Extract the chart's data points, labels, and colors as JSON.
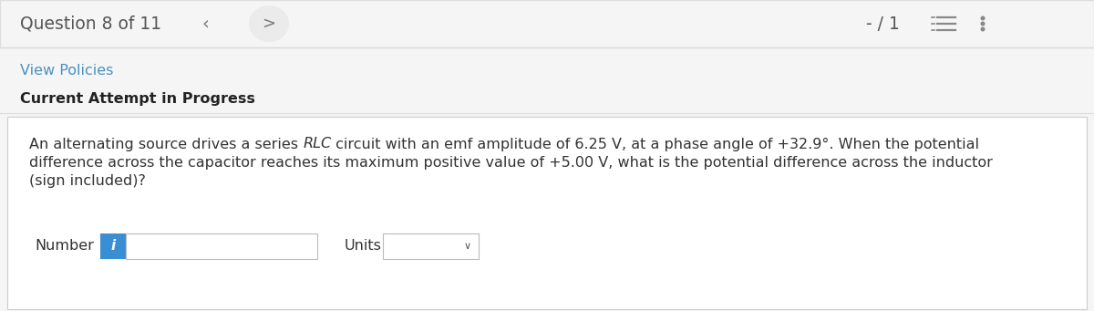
{
  "bg_color": "#f5f5f5",
  "white": "#ffffff",
  "border_color": "#cccccc",
  "header_bg": "#f5f5f5",
  "question_label": "Question 8 of 11",
  "score_label": "- / 1",
  "header_text_color": "#555555",
  "nav_circle_color": "#ebebeb",
  "nav_arrow_color": "#777777",
  "link_color": "#4a90c4",
  "view_policies": "View Policies",
  "attempt_label": "Current Attempt in Progress",
  "attempt_label_color": "#222222",
  "q_line1_pre": "An alternating source drives a series ",
  "q_line1_rlc": "RLC",
  "q_line1_post": " circuit with an emf amplitude of 6.25 V, at a phase angle of +32.9°. When the potential",
  "question_text_line2": "difference across the capacitor reaches its maximum positive value of +5.00 V, what is the potential difference across the inductor",
  "question_text_line3": "(sign included)?",
  "question_text_color": "#333333",
  "number_label": "Number",
  "units_label": "Units",
  "info_btn_color": "#3a8fd4",
  "info_btn_text": "i",
  "input_box_border": "#bbbbbb",
  "text_fontsize": 11.5,
  "header_fontsize": 13.5,
  "label_fontsize": 11.5,
  "divider_color": "#dddddd",
  "icon_color": "#888888"
}
